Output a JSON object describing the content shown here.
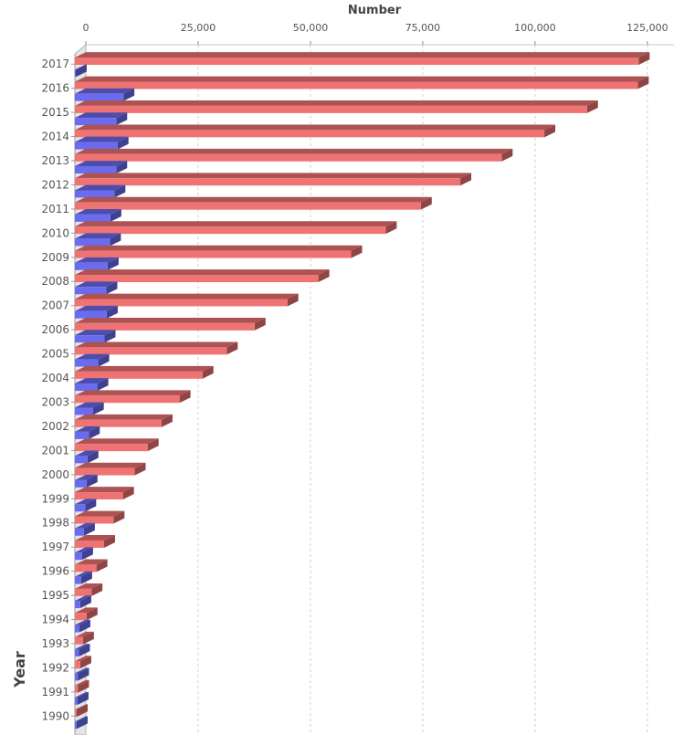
{
  "chart_data": {
    "type": "bar",
    "orientation": "horizontal",
    "style": "3d",
    "xlabel": "Number",
    "ylabel": "Year",
    "xlim": [
      0,
      130000
    ],
    "x_ticks": [
      "0",
      "25,000",
      "50,000",
      "75,000",
      "100,000",
      "125,000"
    ],
    "x_tick_values": [
      0,
      25000,
      50000,
      75000,
      100000,
      125000
    ],
    "grid": true,
    "legend": "none",
    "categories": [
      "2017",
      "2016",
      "2015",
      "2014",
      "2013",
      "2012",
      "2011",
      "2010",
      "2009",
      "2008",
      "2007",
      "2006",
      "2005",
      "2004",
      "2003",
      "2002",
      "2001",
      "2000",
      "1999",
      "1998",
      "1997",
      "1996",
      "1995",
      "1994",
      "1993",
      "1992",
      "1991",
      "1990"
    ],
    "series": [
      {
        "color": "#f07373",
        "values": [
          125500,
          125300,
          114000,
          104500,
          95000,
          85800,
          77000,
          69200,
          61500,
          54200,
          47300,
          40000,
          33800,
          28400,
          23300,
          19300,
          16200,
          13300,
          10700,
          8600,
          6500,
          4800,
          3700,
          2600,
          1800,
          1200,
          700,
          400
        ]
      },
      {
        "color": "#6b6bf0",
        "values": [
          200,
          10800,
          9200,
          9500,
          9200,
          8800,
          7900,
          7800,
          7300,
          7000,
          7100,
          6600,
          5200,
          5000,
          4000,
          3100,
          2800,
          2600,
          2300,
          2000,
          1600,
          1400,
          1200,
          1000,
          900,
          700,
          600,
          400
        ]
      }
    ]
  }
}
